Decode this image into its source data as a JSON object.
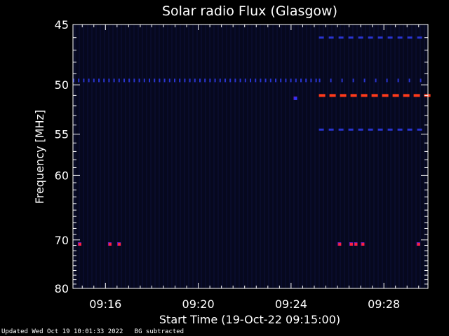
{
  "chart_data": {
    "type": "heatmap",
    "title": "Solar radio Flux (Glasgow)",
    "xlabel": "Start Time (19-Oct-22 09:15:00)",
    "ylabel": "Frequency [MHz]",
    "x_ticks": [
      "09:16",
      "09:20",
      "09:24",
      "09:28"
    ],
    "x_tick_minutes": [
      1,
      5,
      9,
      13
    ],
    "x_range_minutes": [
      -0.4,
      14.9
    ],
    "y_ticks": [
      45,
      50,
      55,
      60,
      70,
      80
    ],
    "y_range": [
      45,
      80
    ],
    "y_scale": "reciprocal",
    "bands": [
      {
        "freq": 46.0,
        "start": 10.2,
        "end": 14.9,
        "color": "#2a35d0",
        "style": "dash"
      },
      {
        "freq": 49.6,
        "start": -0.4,
        "end": 10.2,
        "color": "#2a35d0",
        "style": "dots"
      },
      {
        "freq": 49.6,
        "start": 10.2,
        "end": 14.9,
        "color": "#2a35d0",
        "style": "dots-sparse"
      },
      {
        "freq": 51.0,
        "start": 10.2,
        "end": 14.9,
        "color": "#ff3a1a",
        "style": "dash"
      },
      {
        "freq": 54.5,
        "start": 10.2,
        "end": 14.9,
        "color": "#2a35d0",
        "style": "dash"
      }
    ],
    "spots": [
      {
        "freq": 70.8,
        "minute": -0.1,
        "color": "#ff2040"
      },
      {
        "freq": 70.8,
        "minute": 1.2,
        "color": "#ff2040"
      },
      {
        "freq": 70.8,
        "minute": 1.6,
        "color": "#ff2040"
      },
      {
        "freq": 70.8,
        "minute": 11.1,
        "color": "#ff2040"
      },
      {
        "freq": 70.8,
        "minute": 11.6,
        "color": "#ff2040"
      },
      {
        "freq": 70.8,
        "minute": 11.8,
        "color": "#ff2040"
      },
      {
        "freq": 70.8,
        "minute": 12.1,
        "color": "#ff2040"
      },
      {
        "freq": 70.8,
        "minute": 14.5,
        "color": "#ff2040"
      },
      {
        "freq": 51.3,
        "minute": 9.2,
        "color": "#2a35ff"
      }
    ],
    "background_color": "#06081e",
    "grid": false
  },
  "footer": {
    "updated": "Updated Wed Oct 19 10:01:33 2022",
    "note": "BG subtracted"
  }
}
